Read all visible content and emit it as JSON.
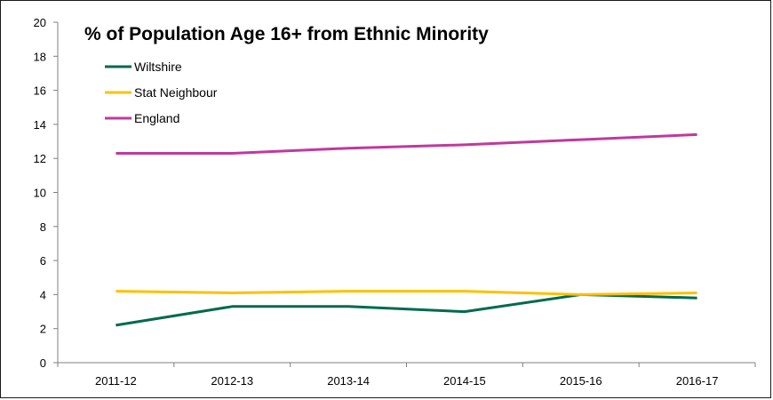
{
  "chart_data": {
    "type": "line",
    "title": "% of Population Age 16+ from Ethnic Minority",
    "xlabel": "",
    "ylabel": "",
    "categories": [
      "2011-12",
      "2012-13",
      "2013-14",
      "2014-15",
      "2015-16",
      "2016-17"
    ],
    "ylim": [
      0,
      20
    ],
    "yticks": [
      0,
      2,
      4,
      6,
      8,
      10,
      12,
      14,
      16,
      18,
      20
    ],
    "grid": false,
    "legend_position": "top-left",
    "series": [
      {
        "name": "Wiltshire",
        "color": "#006a4e",
        "values": [
          2.2,
          3.3,
          3.3,
          3.0,
          4.0,
          3.8
        ]
      },
      {
        "name": "Stat Neighbour",
        "color": "#ffc000",
        "values": [
          4.2,
          4.1,
          4.2,
          4.2,
          4.0,
          4.1
        ]
      },
      {
        "name": "England",
        "color": "#c0399f",
        "values": [
          12.3,
          12.3,
          12.6,
          12.8,
          13.1,
          13.4
        ]
      }
    ]
  }
}
